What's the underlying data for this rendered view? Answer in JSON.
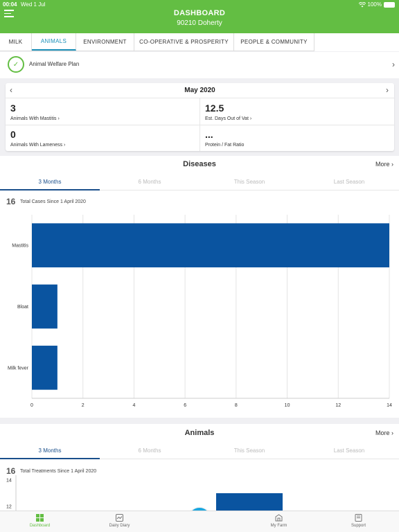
{
  "status": {
    "time": "00:04",
    "date": "Wed 1 Jul",
    "battery": "100%"
  },
  "header": {
    "title": "DASHBOARD",
    "subtitle": "90210 Doherty"
  },
  "tabs": [
    {
      "label": "MILK"
    },
    {
      "label": "ANIMALS"
    },
    {
      "label": "ENVIRONMENT"
    },
    {
      "label": "CO-OPERATIVE & PROSPERITY"
    },
    {
      "label": "PEOPLE & COMMUNITY"
    }
  ],
  "active_tab": "ANIMALS",
  "welfare": {
    "label": "Animal Welfare Plan"
  },
  "summary": {
    "month": "May 2020",
    "stats": [
      {
        "value": "3",
        "label": "Animals With Mastitis",
        "chevron": true
      },
      {
        "value": "12.5",
        "label": "Est. Days Out of Vat",
        "chevron": true
      },
      {
        "value": "0",
        "label": "Animals With Lameness",
        "chevron": true
      },
      {
        "value": "...",
        "label": "Protein / Fat Ratio",
        "chevron": false
      }
    ]
  },
  "diseases": {
    "title": "Diseases",
    "more": "More",
    "periods": [
      "3 Months",
      "6 Months",
      "This Season",
      "Last Season"
    ],
    "total": "16",
    "total_label": "Total Cases Since 1 April 2020"
  },
  "animals": {
    "title": "Animals",
    "more": "More",
    "periods": [
      "3 Months",
      "6 Months",
      "This Season",
      "Last Season"
    ],
    "total": "16",
    "total_label": "Total Treatments Since 1 April 2020"
  },
  "chart_data": [
    {
      "type": "bar",
      "orientation": "horizontal",
      "categories": [
        "Mastitis",
        "Bloat",
        "Milk fever"
      ],
      "values": [
        14,
        1,
        1
      ],
      "xlim": [
        0,
        14
      ],
      "xticks": [
        0,
        2,
        4,
        6,
        8,
        10,
        12,
        14
      ],
      "grid": true,
      "color": "#0a54a0"
    },
    {
      "type": "bar",
      "orientation": "vertical",
      "visible_yticks": [
        14,
        12
      ],
      "values": [
        13
      ],
      "grid": false,
      "color": "#0a54a0"
    }
  ],
  "bottomnav": [
    {
      "label": "Dashboard",
      "icon": "dashboard-icon"
    },
    {
      "label": "Dairy Diary",
      "icon": "dairy-diary-icon"
    },
    {
      "label": "My Farm",
      "icon": "my-farm-icon"
    },
    {
      "label": "Support",
      "icon": "support-icon"
    }
  ],
  "fab": {
    "icon": "plus-icon",
    "symbol": "+"
  },
  "colors": {
    "brand_green": "#63be43",
    "tab_blue": "#1a8fb8",
    "bar_blue": "#0a54a0",
    "fab_blue": "#1aa7e0"
  }
}
